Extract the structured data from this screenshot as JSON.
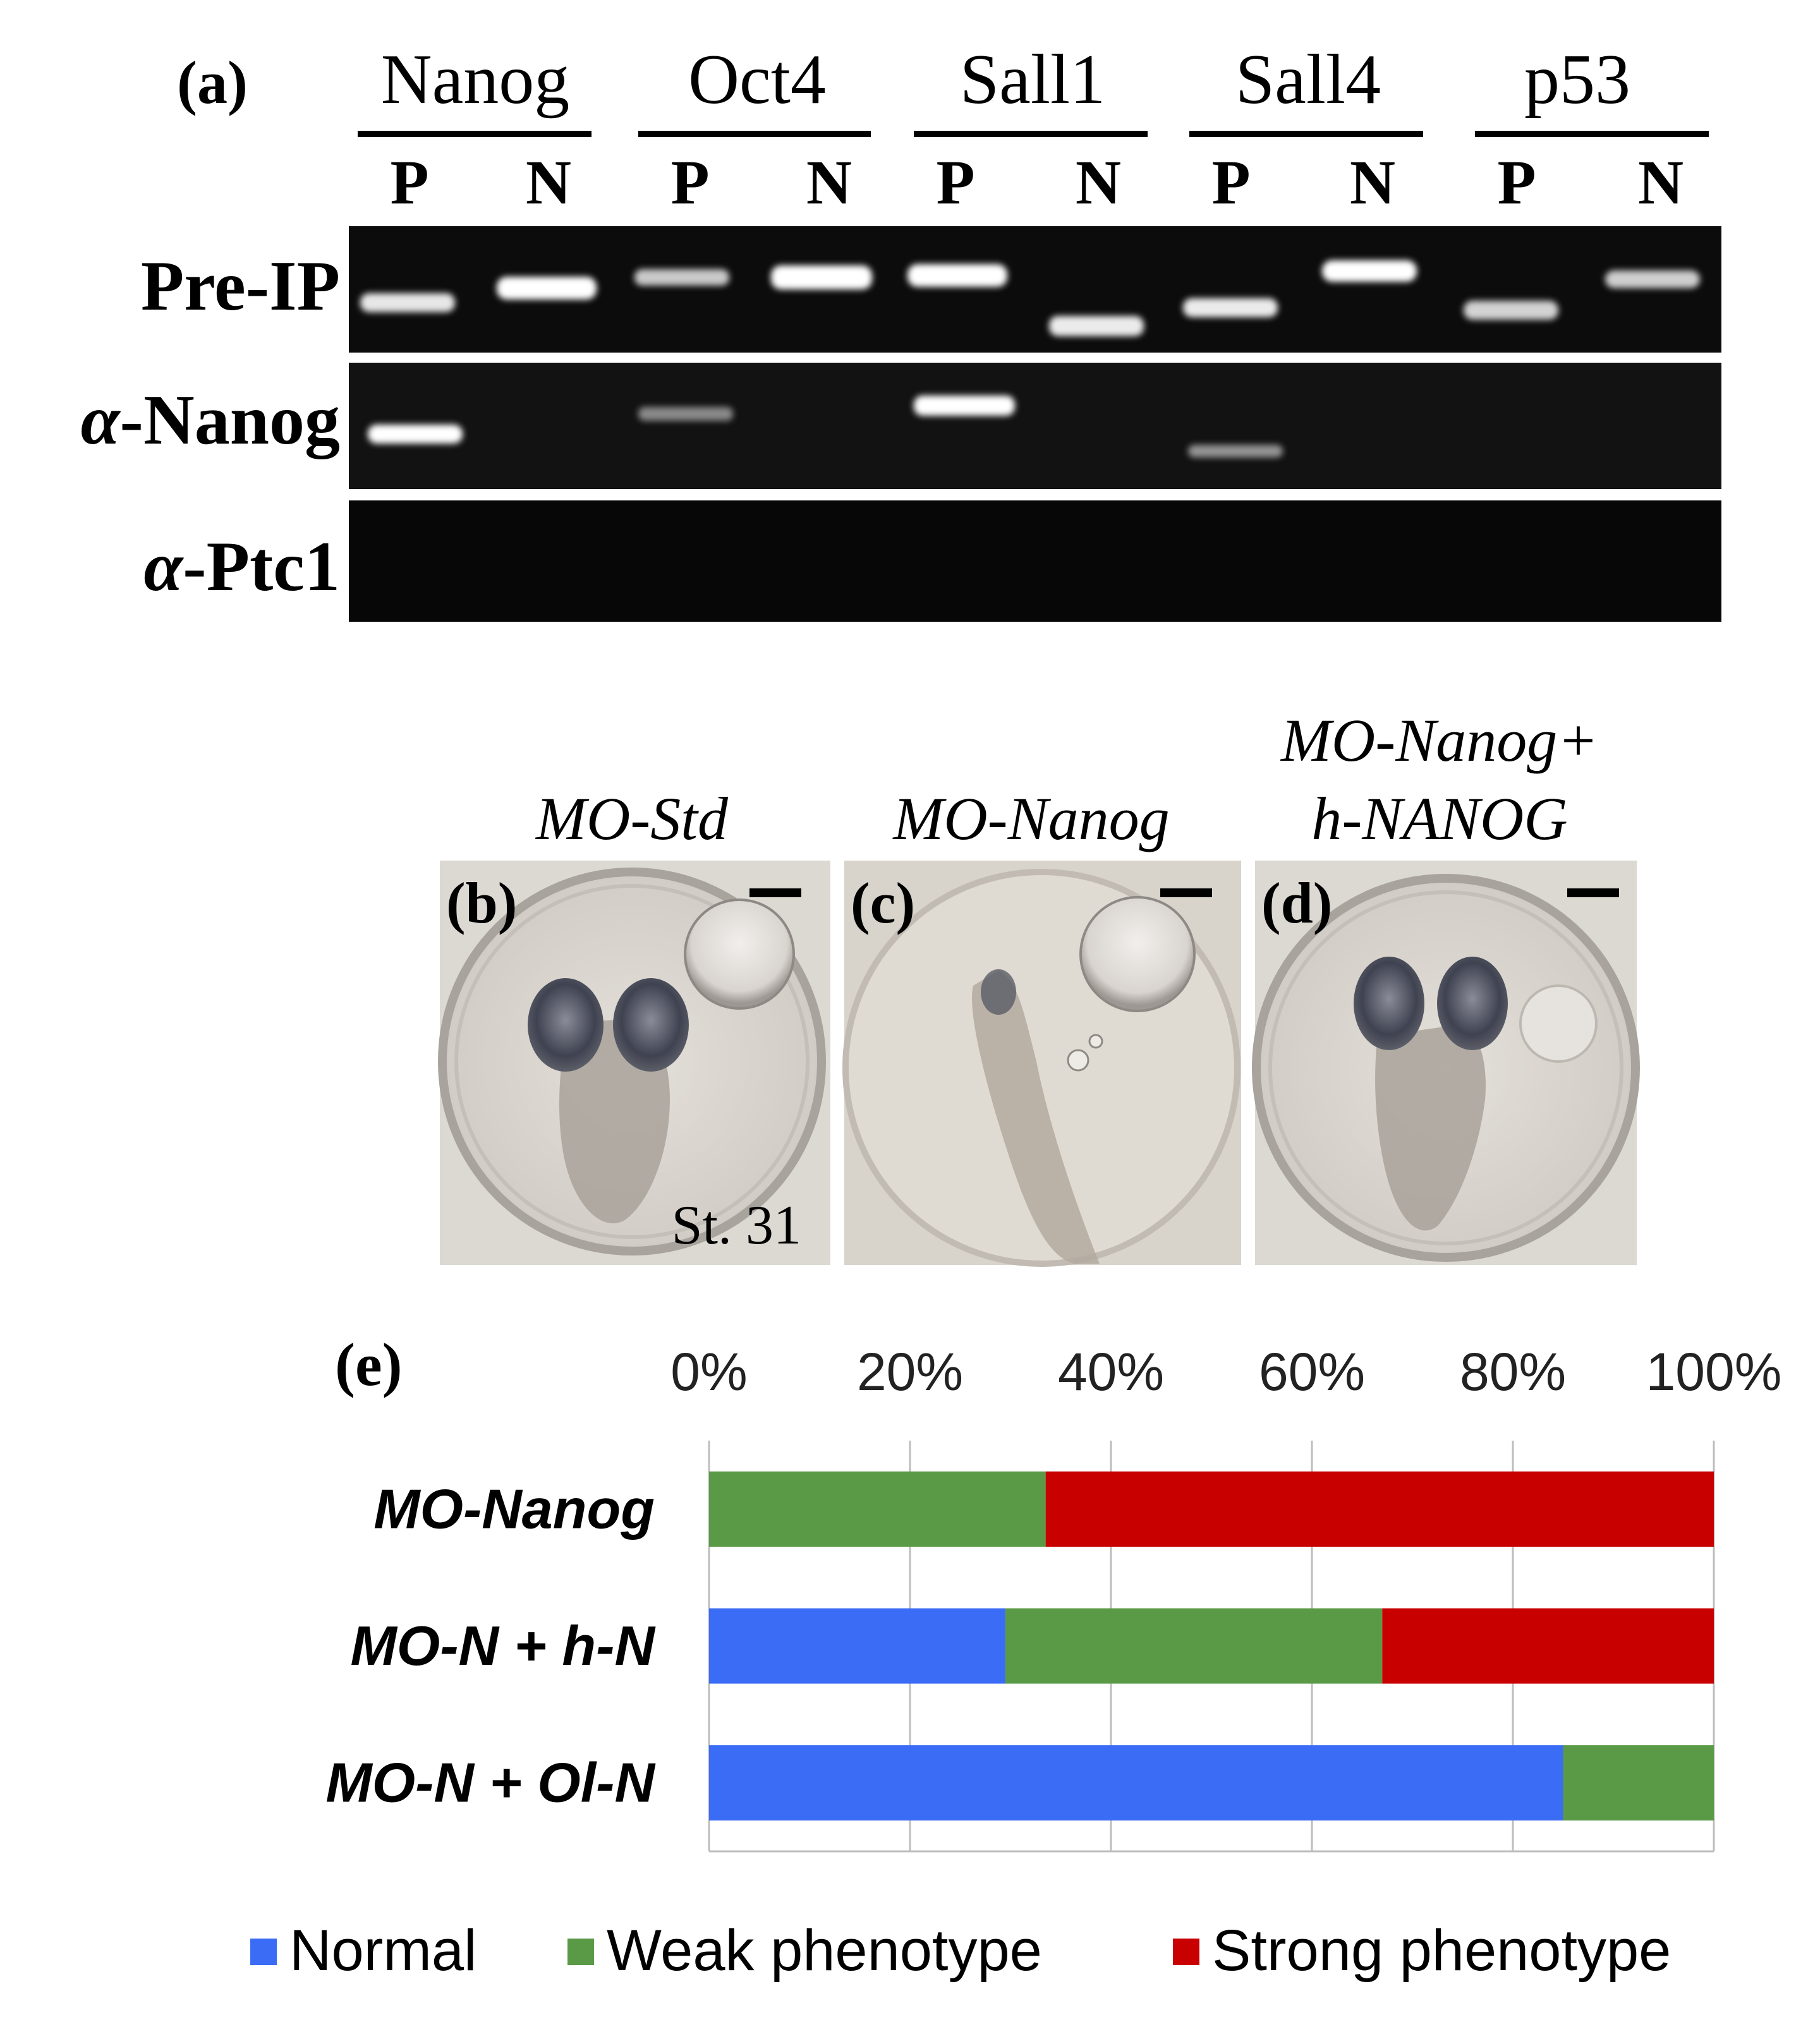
{
  "panel_a": {
    "label": "(a)",
    "genes": [
      {
        "name": "Nanog",
        "lanes": [
          "P",
          "N"
        ]
      },
      {
        "name": "Oct4",
        "lanes": [
          "P",
          "N"
        ]
      },
      {
        "name": "Sall1",
        "lanes": [
          "P",
          "N"
        ]
      },
      {
        "name": "Sall4",
        "lanes": [
          "P",
          "N"
        ]
      },
      {
        "name": "p53",
        "lanes": [
          "P",
          "N"
        ]
      }
    ],
    "rows": [
      {
        "label": "Pre-IP",
        "prefix": "",
        "suffix": "Pre-IP"
      },
      {
        "label": "α-Nanog",
        "prefix": "α",
        "suffix": "-Nanog"
      },
      {
        "label": "α-Ptc1",
        "prefix": "α",
        "suffix": "-Ptc1"
      }
    ]
  },
  "panels_bcd": [
    {
      "label": "(b)",
      "title_lines": [
        "MO-Std"
      ],
      "stage": "St. 31"
    },
    {
      "label": "(c)",
      "title_lines": [
        "MO-Nanog"
      ],
      "stage": ""
    },
    {
      "label": "(d)",
      "title_lines": [
        "MO-Nanog+",
        "h-NANOG"
      ],
      "stage": ""
    }
  ],
  "panel_e": {
    "label": "(e)"
  },
  "chart_data": {
    "type": "bar",
    "orientation": "horizontal",
    "stacked": true,
    "percent": true,
    "categories": [
      "MO-Nanog",
      "MO-N + h-N",
      "MO-N + Ol-N"
    ],
    "series": [
      {
        "name": "Normal",
        "color": "#3b6cf5",
        "values": [
          0,
          29.5,
          85
        ]
      },
      {
        "name": "Weak phenotype",
        "color": "#5a9a46",
        "values": [
          33.5,
          37.5,
          15
        ]
      },
      {
        "name": "Strong phenotype",
        "color": "#c80000",
        "values": [
          66.5,
          33,
          0
        ]
      }
    ],
    "xticks": [
      "0%",
      "20%",
      "40%",
      "60%",
      "80%",
      "100%"
    ],
    "xlim": [
      0,
      100
    ],
    "xaxis_position": "top",
    "grid": true,
    "legend_position": "bottom"
  }
}
